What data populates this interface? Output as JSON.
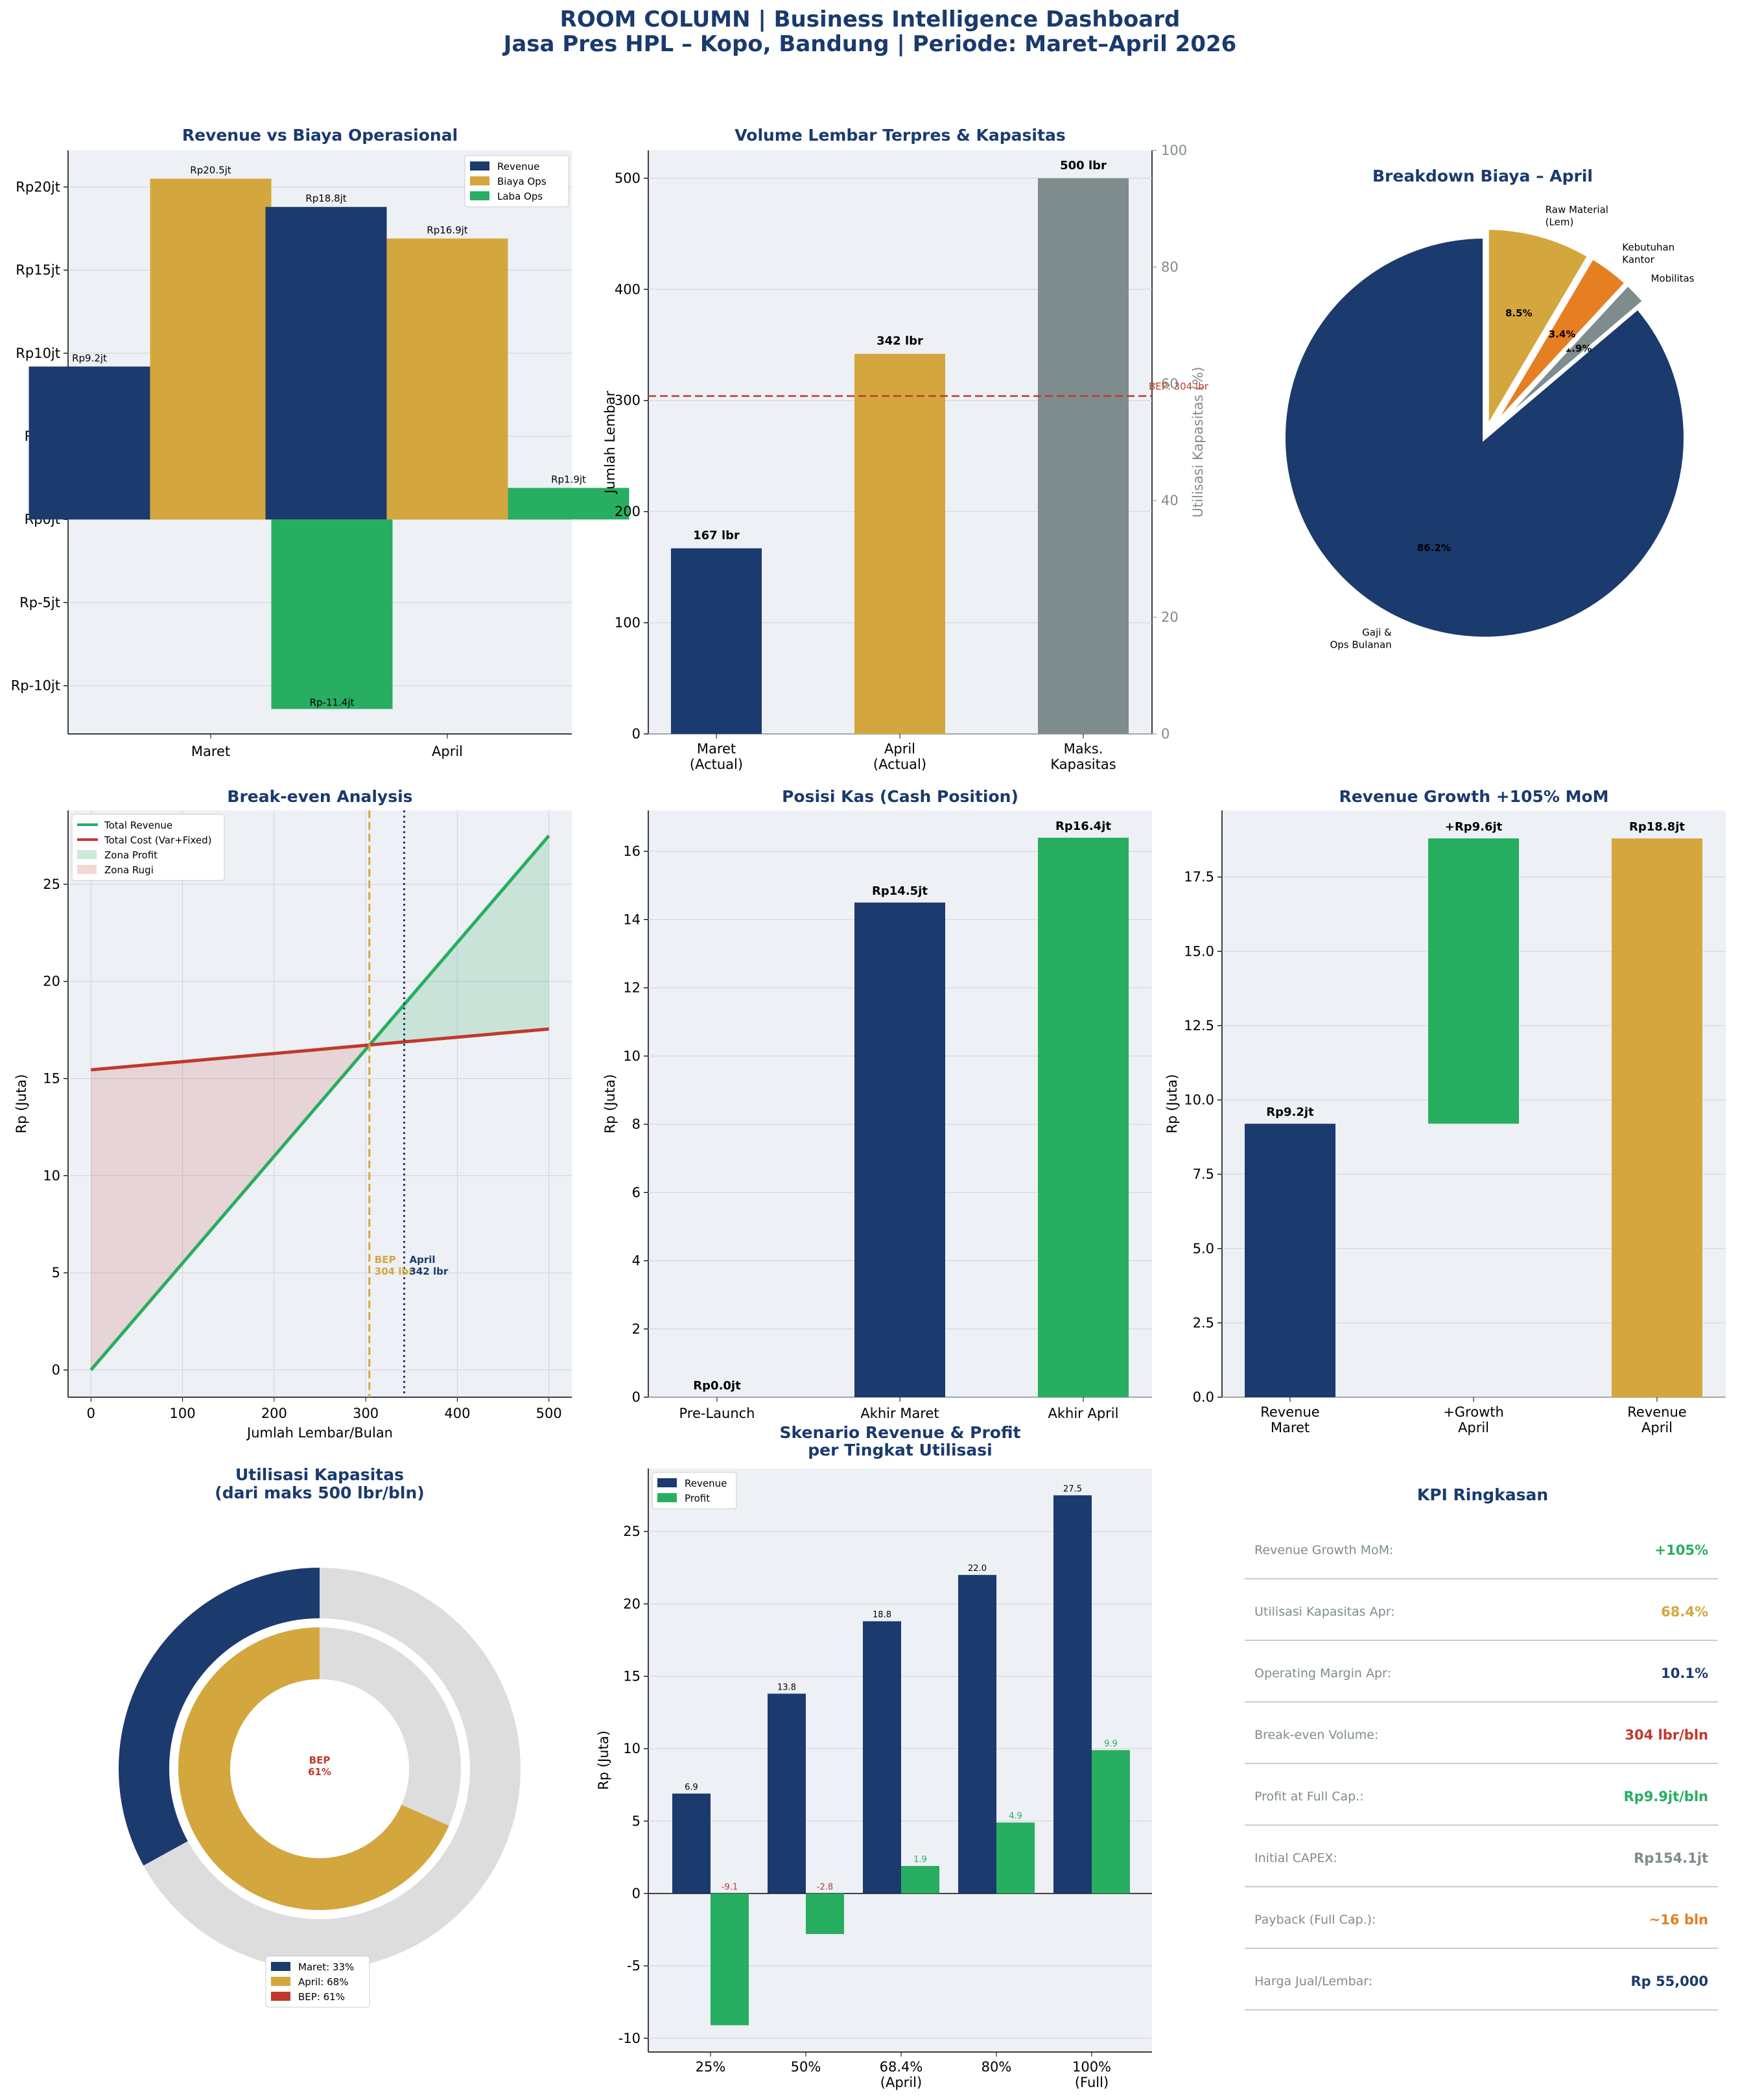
{
  "header": {
    "line1": "ROOM COLUMN  |  Business Intelligence Dashboard",
    "line2": "Jasa Pres HPL – Kopo, Bandung  |  Periode: Maret–April 2026"
  },
  "colors": {
    "navy": "#1b3a6e",
    "gold": "#d4a73e",
    "green": "#27ae60",
    "gray": "#7f8c8d",
    "red": "#c0392b",
    "orange": "#e67e22",
    "light": "#dddddd",
    "bg": "#edf0f5"
  },
  "chart_data": [
    {
      "id": "p1",
      "type": "bar",
      "title": "Revenue vs Biaya Operasional",
      "categories": [
        "Maret",
        "April"
      ],
      "series": [
        {
          "name": "Revenue",
          "values": [
            9.2,
            18.8
          ],
          "labels": [
            "Rp9.2jt",
            "Rp18.8jt"
          ]
        },
        {
          "name": "Biaya Ops",
          "values": [
            20.5,
            16.9
          ],
          "labels": [
            "Rp20.5jt",
            "Rp16.9jt"
          ]
        },
        {
          "name": "Laba Ops",
          "values": [
            -11.4,
            1.9
          ],
          "labels": [
            "Rp-11.4jt",
            "Rp1.9jt"
          ]
        }
      ],
      "yticks": [
        -10,
        -5,
        0,
        5,
        10,
        15,
        20
      ],
      "ytick_labels": [
        "Rp-10jt",
        "Rp-5jt",
        "Rp0jt",
        "Rp5jt",
        "Rp10jt",
        "Rp15jt",
        "Rp20jt"
      ],
      "ylim": [
        -12.9,
        22.2
      ],
      "legend": "top-right"
    },
    {
      "id": "p2",
      "type": "bar",
      "title": "Volume Lembar Terpres & Kapasitas",
      "categories": [
        "Maret\n(Actual)",
        "April\n(Actual)",
        "Maks.\nKapasitas"
      ],
      "values": [
        167,
        342,
        500
      ],
      "labels": [
        "167 lbr",
        "342 lbr",
        "500 lbr"
      ],
      "ylabel": "Jumlah Lembar",
      "y2label": "Utilisasi Kapasitas (%)",
      "ylim": [
        0,
        525
      ],
      "yticks": [
        0,
        100,
        200,
        300,
        400,
        500
      ],
      "y2lim": [
        0,
        100
      ],
      "y2ticks": [
        0,
        20,
        40,
        60,
        80,
        100
      ],
      "bep": {
        "value": 304,
        "label": "BEP: 304 lbr"
      }
    },
    {
      "id": "p3",
      "type": "pie",
      "title": "Breakdown Biaya – April",
      "slices": [
        {
          "label": "Gaji &\nOps Bulanan",
          "value": 86.2,
          "pct": "86.2%"
        },
        {
          "label": "Mobilitas",
          "value": 1.9,
          "pct": "1.9%"
        },
        {
          "label": "Kebutuhan\nKantor",
          "value": 3.4,
          "pct": "3.4%"
        },
        {
          "label": "Raw Material\n(Lem)",
          "value": 8.5,
          "pct": "8.5%"
        }
      ]
    },
    {
      "id": "p4",
      "type": "line",
      "title": "Break-even Analysis",
      "xlabel": "Jumlah Lembar/Bulan",
      "ylabel": "Rp (Juta)",
      "xlim": [
        -25,
        525
      ],
      "ylim": [
        -1.4,
        28.8
      ],
      "xticks": [
        0,
        100,
        200,
        300,
        400,
        500
      ],
      "yticks": [
        0,
        5,
        10,
        15,
        20,
        25
      ],
      "series": [
        {
          "name": "Total Revenue",
          "x": [
            0,
            500
          ],
          "y": [
            0,
            27.5
          ]
        },
        {
          "name": "Total Cost (Var+Fixed)",
          "x": [
            0,
            500
          ],
          "y": [
            15.45,
            17.55
          ]
        }
      ],
      "areas": [
        "Zona Profit",
        "Zona Rugi"
      ],
      "bep_x": 304,
      "april_x": 342,
      "annot_bep": [
        "BEP",
        "304 lbr"
      ],
      "annot_april": [
        "April",
        "342 lbr"
      ]
    },
    {
      "id": "p5",
      "type": "bar",
      "title": "Posisi Kas (Cash Position)",
      "categories": [
        "Pre-Launch",
        "Akhir Maret",
        "Akhir April"
      ],
      "values": [
        0.0,
        14.5,
        16.4
      ],
      "labels": [
        "Rp0.0jt",
        "Rp14.5jt",
        "Rp16.4jt"
      ],
      "ylabel": "Rp (Juta)",
      "ylim": [
        0,
        17.2
      ],
      "yticks": [
        0,
        2,
        4,
        6,
        8,
        10,
        12,
        14,
        16
      ]
    },
    {
      "id": "p6",
      "type": "bar",
      "title": "Revenue Growth +105% MoM",
      "categories": [
        "Revenue\nMaret",
        "+Growth\nApril",
        "Revenue\nApril"
      ],
      "bottoms": [
        0,
        9.2,
        0
      ],
      "values": [
        9.2,
        9.6,
        18.8
      ],
      "labels": [
        "Rp9.2jt",
        "+Rp9.6jt",
        "Rp18.8jt"
      ],
      "ylabel": "Rp (Juta)",
      "ylim": [
        0,
        19.74
      ],
      "yticks": [
        0,
        2.5,
        5,
        7.5,
        10,
        12.5,
        15,
        17.5
      ],
      "ytick_labels": [
        "0.0",
        "2.5",
        "5.0",
        "7.5",
        "10.0",
        "12.5",
        "15.0",
        "17.5"
      ]
    },
    {
      "id": "p7",
      "type": "pie",
      "title": "Utilisasi Kapasitas\n(dari maks 500 lbr/bln)",
      "outer": {
        "name": "Maret",
        "value": 33
      },
      "inner": {
        "name": "April",
        "value": 68.4
      },
      "center": [
        "BEP",
        "61%"
      ],
      "legend": [
        "Maret: 33%",
        "April: 68%",
        "BEP: 61%"
      ]
    },
    {
      "id": "p8",
      "type": "bar",
      "title": "Skenario Revenue & Profit\nper Tingkat Utilisasi",
      "categories": [
        "25%",
        "50%",
        "68.4%\n(April)",
        "80%",
        "100%\n(Full)"
      ],
      "series": [
        {
          "name": "Revenue",
          "values": [
            6.9,
            13.8,
            18.8,
            22.0,
            27.5
          ],
          "labels": [
            "6.9",
            "13.8",
            "18.8",
            "22.0",
            "27.5"
          ]
        },
        {
          "name": "Profit",
          "values": [
            -9.1,
            -2.8,
            1.9,
            4.9,
            9.9
          ],
          "labels": [
            "-9.1",
            "-2.8",
            "1.9",
            "4.9",
            "9.9"
          ]
        }
      ],
      "ylabel": "Rp (Juta)",
      "ylim": [
        -10.95,
        29.35
      ],
      "yticks": [
        -10,
        -5,
        0,
        5,
        10,
        15,
        20,
        25
      ],
      "legend": "top-left"
    }
  ],
  "kpi": {
    "title": "KPI Ringkasan",
    "rows": [
      {
        "label": "Revenue Growth MoM:",
        "value": "+105%",
        "color": "#27ae60"
      },
      {
        "label": "Utilisasi Kapasitas Apr:",
        "value": "68.4%",
        "color": "#d4a73e"
      },
      {
        "label": "Operating Margin Apr:",
        "value": "10.1%",
        "color": "#1b3a6e"
      },
      {
        "label": "Break-even Volume:",
        "value": "304 lbr/bln",
        "color": "#c0392b"
      },
      {
        "label": "Profit at Full Cap.:",
        "value": "Rp9.9jt/bln",
        "color": "#27ae60"
      },
      {
        "label": "Initial CAPEX:",
        "value": "Rp154.1jt",
        "color": "#7f8c8d"
      },
      {
        "label": "Payback (Full Cap.):",
        "value": "~16 bln",
        "color": "#e67e22"
      },
      {
        "label": "Harga Jual/Lembar:",
        "value": "Rp 55,000",
        "color": "#1b3a6e"
      }
    ]
  }
}
